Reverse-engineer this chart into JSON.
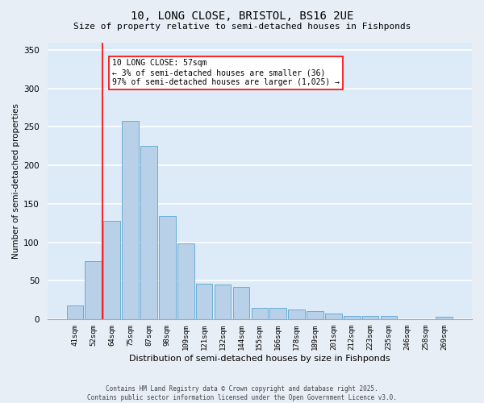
{
  "title1": "10, LONG CLOSE, BRISTOL, BS16 2UE",
  "title2": "Size of property relative to semi-detached houses in Fishponds",
  "xlabel": "Distribution of semi-detached houses by size in Fishponds",
  "ylabel": "Number of semi-detached properties",
  "categories": [
    "41sqm",
    "52sqm",
    "64sqm",
    "75sqm",
    "87sqm",
    "98sqm",
    "109sqm",
    "121sqm",
    "132sqm",
    "144sqm",
    "155sqm",
    "166sqm",
    "178sqm",
    "189sqm",
    "201sqm",
    "212sqm",
    "223sqm",
    "235sqm",
    "246sqm",
    "258sqm",
    "269sqm"
  ],
  "values": [
    18,
    75,
    128,
    258,
    225,
    134,
    98,
    46,
    45,
    42,
    15,
    15,
    13,
    10,
    7,
    4,
    4,
    4,
    0,
    0,
    3
  ],
  "bar_color": "#b8d0e8",
  "bar_edge_color": "#6aaed6",
  "red_line_x": 1.5,
  "annotation_title": "10 LONG CLOSE: 57sqm",
  "annotation_line1": "← 3% of semi-detached houses are smaller (36)",
  "annotation_line2": "97% of semi-detached houses are larger (1,025) →",
  "background_color": "#ddeaf7",
  "grid_color": "#ffffff",
  "fig_background": "#e8eef5",
  "footer1": "Contains HM Land Registry data © Crown copyright and database right 2025.",
  "footer2": "Contains public sector information licensed under the Open Government Licence v3.0.",
  "ylim": [
    0,
    360
  ],
  "yticks": [
    0,
    50,
    100,
    150,
    200,
    250,
    300,
    350
  ]
}
